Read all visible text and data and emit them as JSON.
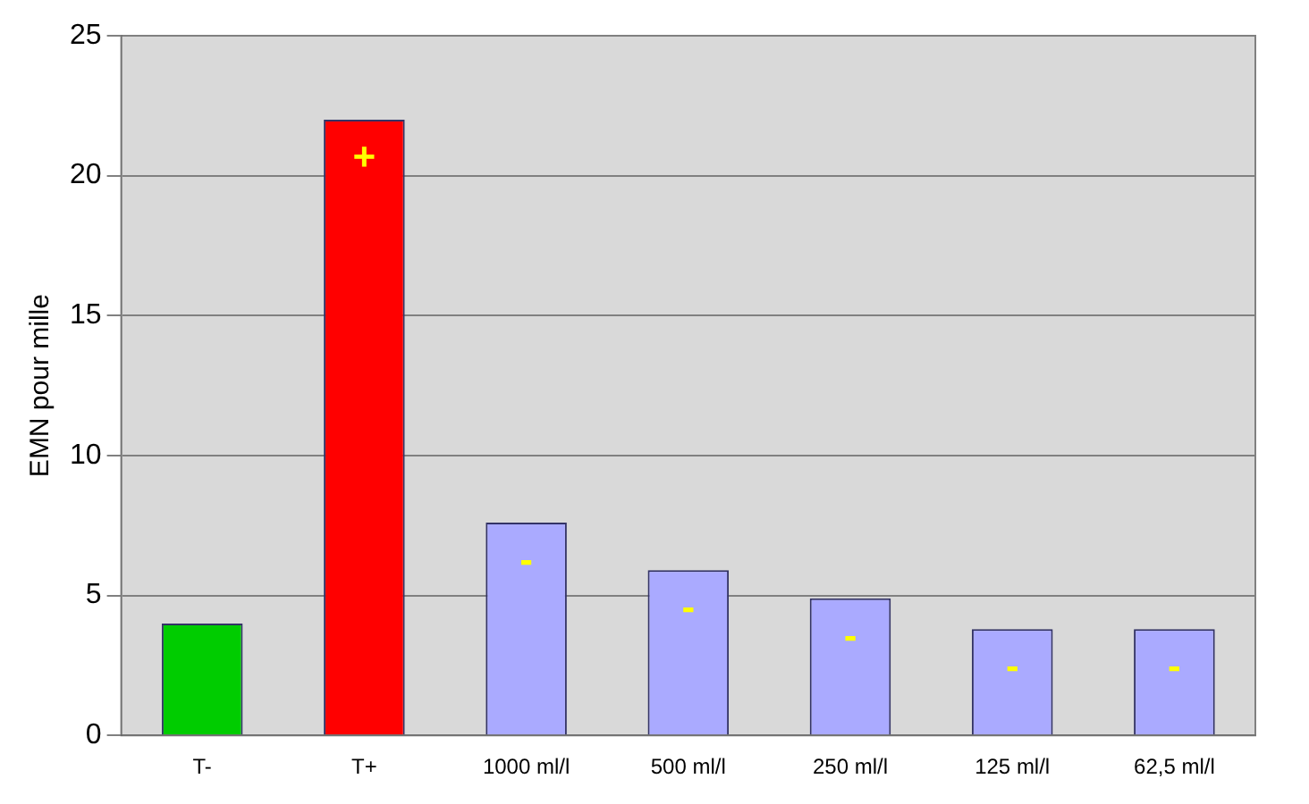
{
  "chart_data": {
    "type": "bar",
    "ylabel": "EMN pour mille",
    "categories": [
      "T-",
      "T+",
      "1000 ml/l",
      "500 ml/l",
      "250 ml/l",
      "125 ml/l",
      "62,5 ml/l"
    ],
    "values": [
      4,
      22,
      7.6,
      5.9,
      4.9,
      3.8,
      3.8
    ],
    "colors": [
      "#00cc00",
      "#ff0000",
      "#aaaaff",
      "#aaaaff",
      "#aaaaff",
      "#aaaaff",
      "#aaaaff"
    ],
    "ylim": [
      0,
      25
    ],
    "yticks": [
      0,
      5,
      10,
      15,
      20,
      25
    ],
    "grid": "y",
    "legend": false,
    "value_labels": [
      null,
      "+",
      "-",
      "-",
      "-",
      "-",
      "-"
    ]
  }
}
